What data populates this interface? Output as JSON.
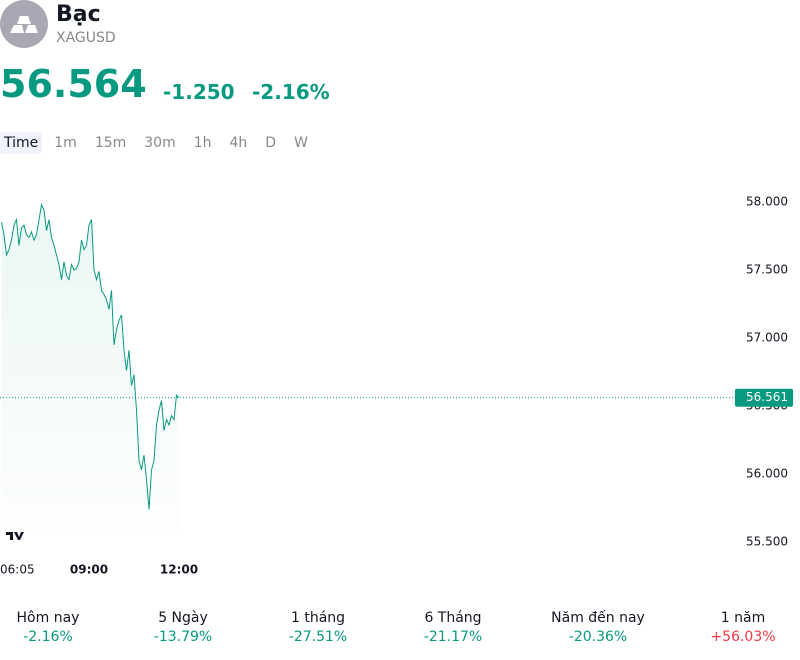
{
  "header": {
    "title": "Bạc",
    "symbol": "XAGUSD",
    "price": "56.564",
    "change": "-1.250",
    "change_percent": "-2.16%"
  },
  "tabs": [
    "Time",
    "1m",
    "15m",
    "30m",
    "1h",
    "4h",
    "D",
    "W"
  ],
  "chart_data": {
    "type": "line",
    "color": "#089981",
    "x": [
      "06:05",
      "06:10",
      "06:15",
      "06:20",
      "06:25",
      "06:30",
      "06:35",
      "06:40",
      "06:45",
      "06:50",
      "06:55",
      "07:00",
      "07:05",
      "07:10",
      "07:15",
      "07:20",
      "07:25",
      "07:30",
      "07:35",
      "07:40",
      "07:45",
      "07:50",
      "07:55",
      "08:00",
      "08:05",
      "08:10",
      "08:15",
      "08:20",
      "08:25",
      "08:30",
      "08:35",
      "08:40",
      "08:45",
      "08:50",
      "08:55",
      "09:00",
      "09:05",
      "09:10",
      "09:15",
      "09:20",
      "09:25",
      "09:30",
      "09:35",
      "09:40",
      "09:45",
      "09:50",
      "09:55",
      "10:00",
      "10:05",
      "10:10",
      "10:15",
      "10:20",
      "10:25",
      "10:30",
      "10:35",
      "10:40",
      "10:45",
      "10:50",
      "10:55",
      "11:00",
      "11:05",
      "11:10",
      "11:15",
      "11:20",
      "11:25",
      "11:30",
      "11:35",
      "11:40",
      "11:45",
      "11:50",
      "11:55",
      "12:00"
    ],
    "values": [
      57850,
      57760,
      57610,
      57650,
      57720,
      57830,
      57870,
      57680,
      57810,
      57830,
      57760,
      57740,
      57780,
      57720,
      57760,
      57870,
      57980,
      57940,
      57790,
      57870,
      57740,
      57680,
      57610,
      57540,
      57430,
      57560,
      57460,
      57430,
      57540,
      57500,
      57510,
      57560,
      57720,
      57650,
      57680,
      57830,
      57870,
      57500,
      57430,
      57490,
      57350,
      57320,
      57280,
      57210,
      57350,
      56950,
      57060,
      57130,
      57170,
      56910,
      56760,
      56910,
      56650,
      56730,
      56470,
      56100,
      56030,
      56140,
      55960,
      55740,
      56030,
      56100,
      56360,
      56470,
      56540,
      56320,
      56400,
      56360,
      56430,
      56400,
      56580,
      56561
    ],
    "ylim": [
      55500,
      58000
    ],
    "yticks": [
      {
        "value": 55500,
        "label": "55.500"
      },
      {
        "value": 56000,
        "label": "56.000"
      },
      {
        "value": 56500,
        "label": "56.500"
      },
      {
        "value": 57000,
        "label": "57.000"
      },
      {
        "value": 57500,
        "label": "57.500"
      },
      {
        "value": 58000,
        "label": "58.000"
      }
    ],
    "xticks": [
      "06:05",
      "09:00",
      "12:00"
    ],
    "price_line": {
      "value": 56561,
      "label": "56.561"
    }
  },
  "stats": [
    {
      "period": "Hôm nay",
      "change": "-2.16%"
    },
    {
      "period": "5 Ngày",
      "change": "-13.79%"
    },
    {
      "period": "1 tháng",
      "change": "-27.51%"
    },
    {
      "period": "6 Tháng",
      "change": "-21.17%"
    },
    {
      "period": "Năm đến nay",
      "change": "-20.36%"
    },
    {
      "period": "1 năm",
      "change": "+56.03%",
      "positive": true
    }
  ]
}
